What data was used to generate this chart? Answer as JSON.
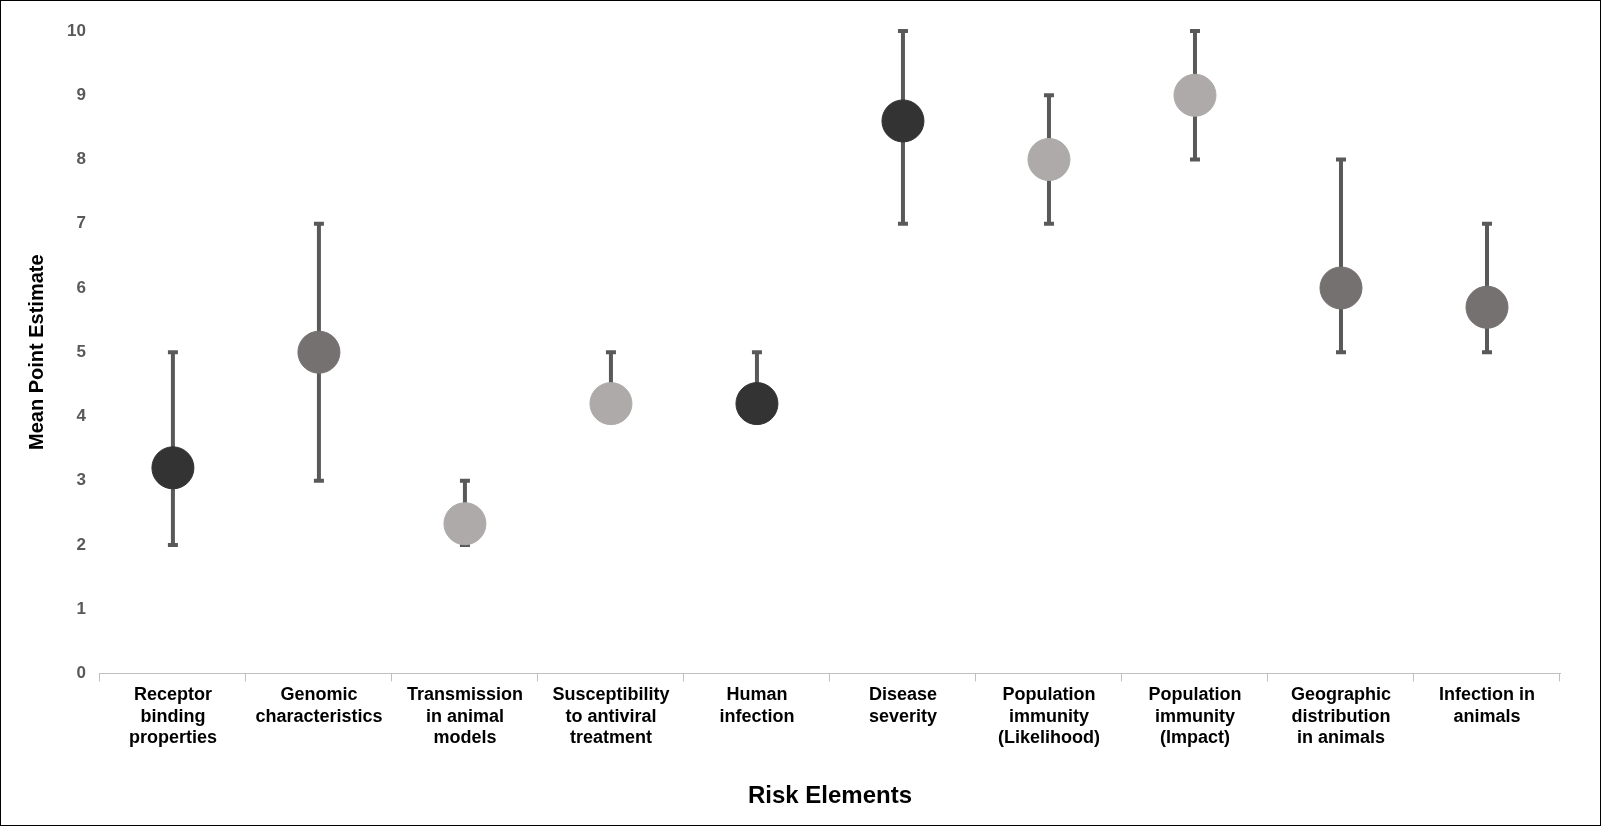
{
  "chart_data": {
    "type": "scatter",
    "xlabel": "Risk Elements",
    "ylabel": "Mean Point Estimate",
    "categories": [
      "Receptor binding properties",
      "Genomic characteristics",
      "Transmission in animal models",
      "Susceptibility to antiviral treatment",
      "Human infection",
      "Disease severity",
      "Population immunity (Likelihood)",
      "Population immunity (Impact)",
      "Geographic distribution in animals",
      "Infection in animals"
    ],
    "values": [
      3.2,
      5,
      2.33,
      4.2,
      4.2,
      8.6,
      8,
      9,
      6,
      5.7
    ],
    "colors": [
      "#333333",
      "#757171",
      "#aeaaaa",
      "#aeaaaa",
      "#333333",
      "#333333",
      "#aeaaaa",
      "#aeaaaa",
      "#757171",
      "#757171"
    ],
    "errors": [
      [
        2,
        5
      ],
      [
        3,
        7
      ],
      [
        2,
        3
      ],
      [
        4.2,
        5
      ],
      [
        4.2,
        5
      ],
      [
        7,
        10
      ],
      [
        7,
        9
      ],
      [
        8,
        10
      ],
      [
        5,
        8
      ],
      [
        5,
        7
      ]
    ],
    "ylim": [
      0,
      10
    ],
    "yticks": [
      0,
      1,
      2,
      3,
      4,
      5,
      6,
      7,
      8,
      9,
      10
    ],
    "grid": false,
    "legend": false,
    "marker": "circle"
  }
}
